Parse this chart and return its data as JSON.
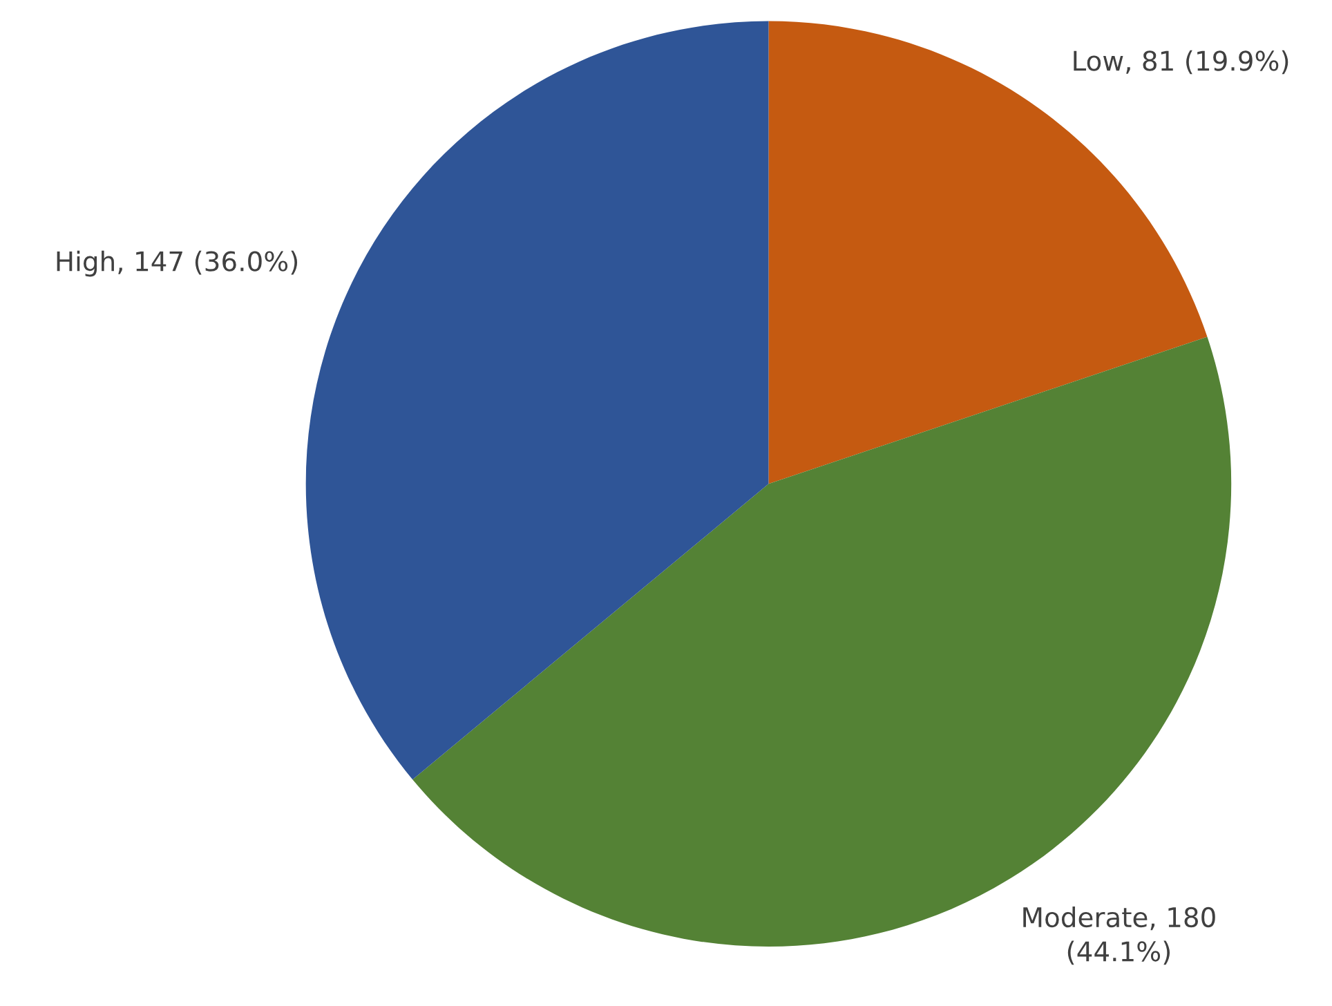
{
  "chart_data": {
    "type": "pie",
    "categories": [
      "Low",
      "Moderate",
      "High"
    ],
    "values": [
      81,
      180,
      147
    ],
    "value_labels": [
      "81 (19.9%)",
      "180\n(44.1%)",
      "147 (36.0%)"
    ],
    "colors": [
      "#c55a11",
      "#548235",
      "#2f5597"
    ]
  }
}
